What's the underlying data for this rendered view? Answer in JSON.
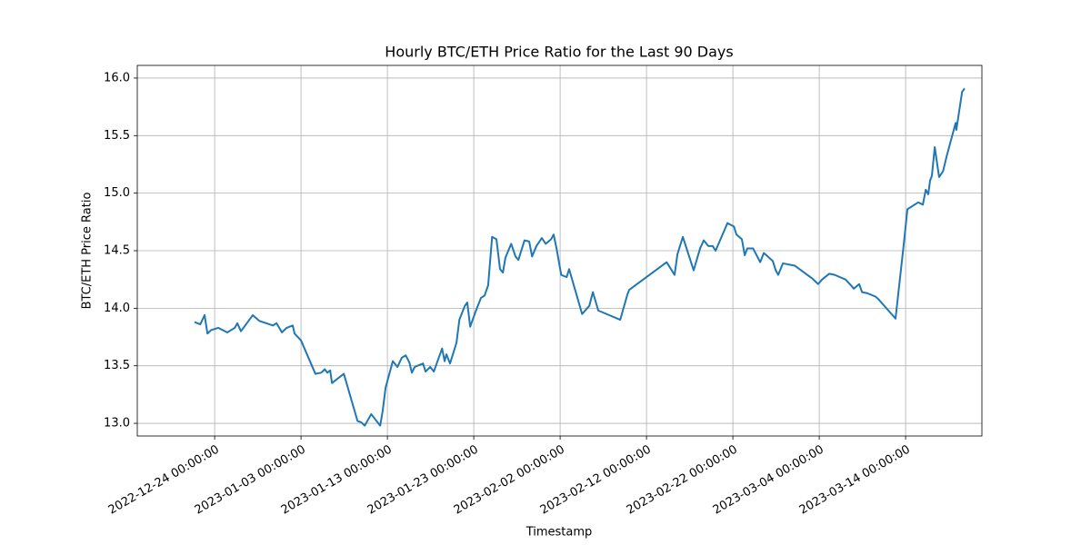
{
  "chart_data": {
    "type": "line",
    "title": "Hourly BTC/ETH Price Ratio for the Last 90 Days",
    "xlabel": "Timestamp",
    "ylabel": "BTC/ETH Price Ratio",
    "color": "#1f77b4",
    "grid": true,
    "xlim": [
      "2022-12-15 01:00:00",
      "2023-03-22 20:00:00"
    ],
    "xticks": [
      "2022-12-24 00:00:00",
      "2023-01-03 00:00:00",
      "2023-01-13 00:00:00",
      "2023-01-23 00:00:00",
      "2023-02-02 00:00:00",
      "2023-02-12 00:00:00",
      "2023-02-22 00:00:00",
      "2023-03-04 00:00:00",
      "2023-03-14 00:00:00"
    ],
    "ylim": [
      12.89,
      16.11
    ],
    "yticks": [
      {
        "value": 13,
        "label": "13.0"
      },
      13.5,
      {
        "value": 14,
        "label": "14.0"
      },
      14.5,
      {
        "value": 15,
        "label": "15.0"
      },
      15.5,
      {
        "value": 16,
        "label": "16.0"
      }
    ],
    "x": [
      "2022-12-21 16:00:00",
      "2022-12-22 00:00:00",
      "2022-12-22 08:00:00",
      "2022-12-22 20:00:00",
      "2022-12-23 04:00:00",
      "2022-12-23 14:00:00",
      "2022-12-24 10:00:00",
      "2022-12-25 11:00:00",
      "2022-12-26 08:00:00",
      "2022-12-26 15:00:00",
      "2022-12-27 01:00:00",
      "2022-12-28 10:00:00",
      "2022-12-29 04:00:00",
      "2022-12-30 18:00:00",
      "2022-12-31 04:00:00",
      "2022-12-31 19:00:00",
      "2023-01-01 08:00:00",
      "2023-01-02 01:00:00",
      "2023-01-02 06:00:00",
      "2023-01-03 00:00:00",
      "2023-01-04 16:00:00",
      "2023-01-05 08:00:00",
      "2023-01-05 18:00:00",
      "2023-01-06 01:00:00",
      "2023-01-06 09:00:00",
      "2023-01-06 14:00:00",
      "2023-01-07 23:00:00",
      "2023-01-09 13:00:00",
      "2023-01-09 23:00:00",
      "2023-01-10 09:00:00",
      "2023-01-11 03:00:00",
      "2023-01-12 04:00:00",
      "2023-01-12 11:00:00",
      "2023-01-12 19:00:00",
      "2023-01-13 15:00:00",
      "2023-01-14 04:00:00",
      "2023-01-14 16:00:00",
      "2023-01-15 03:00:00",
      "2023-01-15 13:00:00",
      "2023-01-15 20:00:00",
      "2023-01-16 04:00:00",
      "2023-01-17 03:00:00",
      "2023-01-17 10:00:00",
      "2023-01-17 23:00:00",
      "2023-01-18 09:00:00",
      "2023-01-19 08:00:00",
      "2023-01-19 15:00:00",
      "2023-01-19 20:00:00",
      "2023-01-20 06:00:00",
      "2023-01-21 00:00:00",
      "2023-01-21 08:00:00",
      "2023-01-21 23:00:00",
      "2023-01-22 06:00:00",
      "2023-01-22 14:00:00",
      "2023-01-23 05:00:00",
      "2023-01-23 20:00:00",
      "2023-01-24 06:00:00",
      "2023-01-24 16:00:00",
      "2023-01-25 03:00:00",
      "2023-01-25 15:00:00",
      "2023-01-26 01:00:00",
      "2023-01-26 09:00:00",
      "2023-01-26 16:00:00",
      "2023-01-27 08:00:00",
      "2023-01-27 20:00:00",
      "2023-01-28 04:00:00",
      "2023-01-28 21:00:00",
      "2023-01-29 10:00:00",
      "2023-01-29 18:00:00",
      "2023-01-30 06:00:00",
      "2023-01-30 21:00:00",
      "2023-01-31 08:00:00",
      "2023-01-31 23:00:00",
      "2023-02-01 06:00:00",
      "2023-02-01 14:00:00",
      "2023-02-02 03:00:00",
      "2023-02-02 18:00:00",
      "2023-02-03 01:00:00",
      "2023-02-04 13:00:00",
      "2023-02-05 09:00:00",
      "2023-02-05 19:00:00",
      "2023-02-06 10:00:00",
      "2023-02-08 23:00:00",
      "2023-02-09 19:00:00",
      "2023-02-10 00:00:00",
      "2023-02-14 08:00:00",
      "2023-02-15 06:00:00",
      "2023-02-15 14:00:00",
      "2023-02-16 05:00:00",
      "2023-02-17 11:00:00",
      "2023-02-18 05:00:00",
      "2023-02-18 15:00:00",
      "2023-02-19 04:00:00",
      "2023-02-19 16:00:00",
      "2023-02-20 00:00:00",
      "2023-02-21 09:00:00",
      "2023-02-22 03:00:00",
      "2023-02-22 10:00:00",
      "2023-02-23 01:00:00",
      "2023-02-23 09:00:00",
      "2023-02-23 16:00:00",
      "2023-02-24 08:00:00",
      "2023-02-25 04:00:00",
      "2023-02-25 14:00:00",
      "2023-02-26 15:00:00",
      "2023-02-26 23:00:00",
      "2023-02-27 06:00:00",
      "2023-02-27 19:00:00",
      "2023-03-01 04:00:00",
      "2023-03-03 04:00:00",
      "2023-03-03 21:00:00",
      "2023-03-04 08:00:00",
      "2023-03-05 04:00:00",
      "2023-03-05 19:00:00",
      "2023-03-07 01:00:00",
      "2023-03-07 16:00:00",
      "2023-03-08 00:00:00",
      "2023-03-08 15:00:00",
      "2023-03-08 23:00:00",
      "2023-03-09 14:00:00",
      "2023-03-10 13:00:00",
      "2023-03-10 20:00:00",
      "2023-03-12 20:00:00",
      "2023-03-13 19:00:00",
      "2023-03-14 05:00:00",
      "2023-03-15 11:00:00",
      "2023-03-16 00:00:00",
      "2023-03-16 08:00:00",
      "2023-03-16 15:00:00",
      "2023-03-16 20:00:00",
      "2023-03-17 01:00:00",
      "2023-03-17 09:00:00",
      "2023-03-17 21:00:00",
      "2023-03-18 08:00:00",
      "2023-03-18 18:00:00",
      "2023-03-19 19:00:00",
      "2023-03-19 21:00:00",
      "2023-03-20 13:00:00",
      "2023-03-20 20:00:00"
    ],
    "values": [
      13.88,
      13.87,
      13.86,
      13.94,
      13.78,
      13.81,
      13.83,
      13.79,
      13.83,
      13.87,
      13.8,
      13.94,
      13.89,
      13.85,
      13.87,
      13.79,
      13.83,
      13.85,
      13.78,
      13.72,
      13.43,
      13.44,
      13.47,
      13.44,
      13.46,
      13.35,
      13.43,
      13.02,
      13.01,
      12.98,
      13.08,
      12.98,
      13.11,
      13.31,
      13.54,
      13.49,
      13.57,
      13.59,
      13.53,
      13.44,
      13.49,
      13.52,
      13.45,
      13.49,
      13.45,
      13.65,
      13.54,
      13.6,
      13.52,
      13.7,
      13.9,
      14.02,
      14.05,
      13.84,
      13.97,
      14.09,
      14.11,
      14.2,
      14.62,
      14.6,
      14.34,
      14.31,
      14.44,
      14.56,
      14.45,
      14.42,
      14.59,
      14.58,
      14.45,
      14.54,
      14.61,
      14.56,
      14.6,
      14.64,
      14.52,
      14.29,
      14.27,
      14.34,
      13.95,
      14.02,
      14.14,
      13.98,
      13.9,
      14.12,
      14.16,
      14.4,
      14.29,
      14.47,
      14.62,
      14.33,
      14.52,
      14.59,
      14.54,
      14.54,
      14.5,
      14.74,
      14.71,
      14.64,
      14.6,
      14.46,
      14.52,
      14.52,
      14.4,
      14.48,
      14.41,
      14.33,
      14.29,
      14.39,
      14.37,
      14.26,
      14.21,
      14.25,
      14.3,
      14.29,
      14.25,
      14.2,
      14.17,
      14.21,
      14.14,
      14.13,
      14.1,
      14.08,
      13.91,
      14.56,
      14.86,
      14.92,
      14.9,
      15.03,
      14.99,
      15.11,
      15.15,
      15.4,
      15.14,
      15.19,
      15.32,
      15.61,
      15.55,
      15.88,
      15.91
    ]
  }
}
